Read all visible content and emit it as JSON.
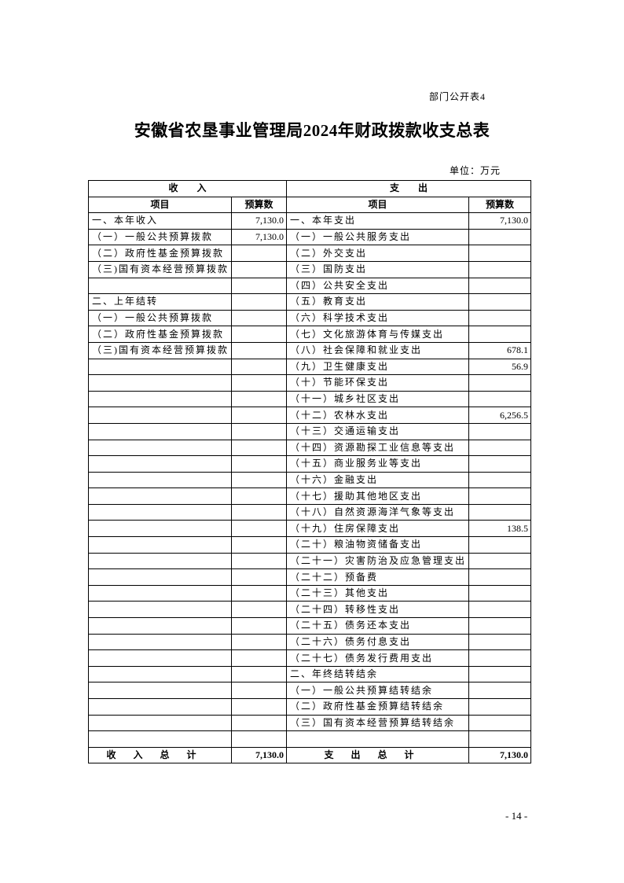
{
  "header_tag": "部门公开表4",
  "title": "安徽省农垦事业管理局2024年财政拨款收支总表",
  "unit": "单位：万元",
  "table": {
    "income_header": "收　　入",
    "expense_header": "支　　出",
    "col_item": "项目",
    "col_amount": "预算数",
    "rows": [
      [
        "一、本年收入",
        "7,130.0",
        "一、本年支出",
        "7,130.0"
      ],
      [
        "（一）一般公共预算拨款",
        "7,130.0",
        "（一）一般公共服务支出",
        ""
      ],
      [
        "（二）政府性基金预算拨款",
        "",
        "（二）外交支出",
        ""
      ],
      [
        "（三)国有资本经营预算拨款",
        "",
        "（三）国防支出",
        ""
      ],
      [
        "",
        "",
        "（四）公共安全支出",
        ""
      ],
      [
        "二、上年结转",
        "",
        "（五）教育支出",
        ""
      ],
      [
        "（一）一般公共预算拨款",
        "",
        "（六）科学技术支出",
        ""
      ],
      [
        "（二）政府性基金预算拨款",
        "",
        "（七）文化旅游体育与传媒支出",
        ""
      ],
      [
        "（三)国有资本经营预算拨款",
        "",
        "（八）社会保障和就业支出",
        "678.1"
      ],
      [
        "",
        "",
        "（九）卫生健康支出",
        "56.9"
      ],
      [
        "",
        "",
        "（十）节能环保支出",
        ""
      ],
      [
        "",
        "",
        "（十一）城乡社区支出",
        ""
      ],
      [
        "",
        "",
        "（十二）农林水支出",
        "6,256.5"
      ],
      [
        "",
        "",
        "（十三）交通运输支出",
        ""
      ],
      [
        "",
        "",
        "（十四）资源勘探工业信息等支出",
        ""
      ],
      [
        "",
        "",
        "（十五）商业服务业等支出",
        ""
      ],
      [
        "",
        "",
        "（十六）金融支出",
        ""
      ],
      [
        "",
        "",
        "（十七）援助其他地区支出",
        ""
      ],
      [
        "",
        "",
        "（十八）自然资源海洋气象等支出",
        ""
      ],
      [
        "",
        "",
        "（十九）住房保障支出",
        "138.5"
      ],
      [
        "",
        "",
        "（二十）粮油物资储备支出",
        ""
      ],
      [
        "",
        "",
        "（二十一）灾害防治及应急管理支出",
        ""
      ],
      [
        "",
        "",
        "（二十二）预备费",
        ""
      ],
      [
        "",
        "",
        "（二十三）其他支出",
        ""
      ],
      [
        "",
        "",
        "（二十四）转移性支出",
        ""
      ],
      [
        "",
        "",
        "（二十五）债务还本支出",
        ""
      ],
      [
        "",
        "",
        "（二十六）债务付息支出",
        ""
      ],
      [
        "",
        "",
        "（二十七）债务发行费用支出",
        ""
      ],
      [
        "",
        "",
        "二、年终结转结余",
        ""
      ],
      [
        "",
        "",
        "（一）一般公共预算结转结余",
        ""
      ],
      [
        "",
        "",
        "（二）政府性基金预算结转结余",
        ""
      ],
      [
        "",
        "",
        "（三）国有资本经营预算结转结余",
        ""
      ],
      [
        "",
        "",
        "",
        ""
      ]
    ],
    "income_total_label": "收入总计",
    "income_total": "7,130.0",
    "expense_total_label": "支出总计",
    "expense_total": "7,130.0"
  },
  "page_number": "- 14 -"
}
